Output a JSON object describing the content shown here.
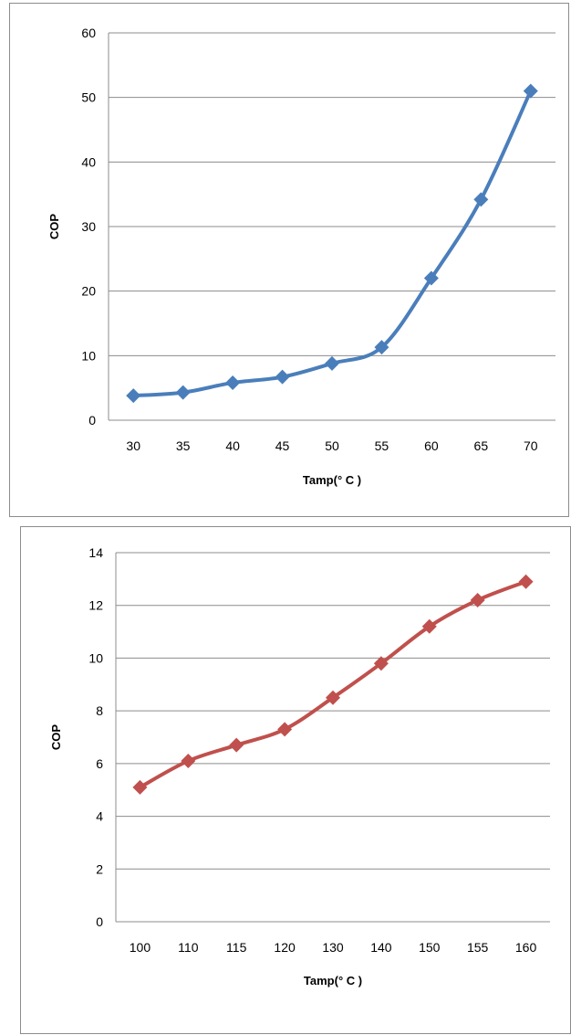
{
  "chart_data": [
    {
      "type": "line",
      "categories": [
        "30",
        "35",
        "40",
        "45",
        "50",
        "55",
        "60",
        "65",
        "70"
      ],
      "series": [
        {
          "values": [
            3.8,
            4.3,
            5.8,
            6.7,
            8.8,
            11.3,
            22,
            34.2,
            51
          ],
          "color": "#4a7ebb",
          "marker": "diamond"
        }
      ],
      "title": "",
      "xlabel": "Tamp(° C )",
      "ylabel": "COP",
      "ylim": [
        0,
        60
      ],
      "yticks": [
        "0",
        "10",
        "20",
        "30",
        "40",
        "50",
        "60"
      ],
      "grid": "horizontal",
      "smooth": true
    },
    {
      "type": "line",
      "categories": [
        "100",
        "110",
        "115",
        "120",
        "130",
        "140",
        "150",
        "155",
        "160"
      ],
      "series": [
        {
          "values": [
            5.1,
            6.1,
            6.7,
            7.3,
            8.5,
            9.8,
            11.2,
            12.2,
            12.9
          ],
          "color": "#c0504d",
          "marker": "diamond"
        }
      ],
      "title": "",
      "xlabel": "Tamp(° C )",
      "ylabel": "COP",
      "ylim": [
        0,
        14
      ],
      "yticks": [
        "0",
        "2",
        "4",
        "6",
        "8",
        "10",
        "12",
        "14"
      ],
      "grid": "horizontal",
      "smooth": true
    }
  ]
}
